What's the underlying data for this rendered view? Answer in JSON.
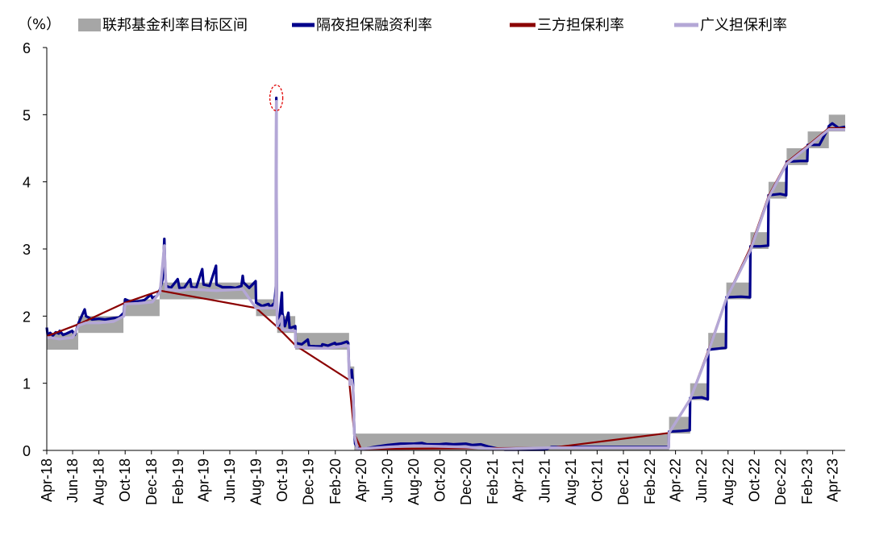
{
  "chart_data": {
    "type": "line",
    "unit": "（%）",
    "ylim": [
      0,
      6
    ],
    "y_ticks": [
      "0",
      "1",
      "2",
      "3",
      "4",
      "5",
      "6"
    ],
    "x_ticks": [
      "Apr-18",
      "Jun-18",
      "Aug-18",
      "Oct-18",
      "Dec-18",
      "Feb-19",
      "Apr-19",
      "Jun-19",
      "Aug-19",
      "Oct-19",
      "Dec-19",
      "Feb-20",
      "Apr-20",
      "Jun-20",
      "Aug-20",
      "Oct-20",
      "Dec-20",
      "Feb-21",
      "Apr-21",
      "Jun-21",
      "Aug-21",
      "Oct-21",
      "Dec-21",
      "Feb-22",
      "Apr-22",
      "Jun-22",
      "Aug-22",
      "Oct-22",
      "Dec-22",
      "Feb-23",
      "Apr-23"
    ],
    "xlim": [
      "2018-04-02",
      "2023-04-30"
    ],
    "legend_position": "top",
    "grid": false,
    "series": [
      {
        "name": "联邦基金利率目标区间",
        "kind": "band",
        "color": "#a6a6a6",
        "steps": [
          {
            "from": "2018-04-02",
            "to": "2018-06-14",
            "low": 1.5,
            "high": 1.75
          },
          {
            "from": "2018-06-14",
            "to": "2018-09-27",
            "low": 1.75,
            "high": 2.0
          },
          {
            "from": "2018-09-27",
            "to": "2018-12-20",
            "low": 2.0,
            "high": 2.25
          },
          {
            "from": "2018-12-20",
            "to": "2019-08-01",
            "low": 2.25,
            "high": 2.5
          },
          {
            "from": "2019-08-01",
            "to": "2019-09-19",
            "low": 2.0,
            "high": 2.25
          },
          {
            "from": "2019-09-19",
            "to": "2019-10-31",
            "low": 1.75,
            "high": 2.0
          },
          {
            "from": "2019-10-31",
            "to": "2020-03-04",
            "low": 1.5,
            "high": 1.75
          },
          {
            "from": "2020-03-04",
            "to": "2020-03-16",
            "low": 1.0,
            "high": 1.25
          },
          {
            "from": "2020-03-16",
            "to": "2022-03-17",
            "low": 0.0,
            "high": 0.25
          },
          {
            "from": "2022-03-17",
            "to": "2022-05-05",
            "low": 0.25,
            "high": 0.5
          },
          {
            "from": "2022-05-05",
            "to": "2022-06-16",
            "low": 0.75,
            "high": 1.0
          },
          {
            "from": "2022-06-16",
            "to": "2022-07-28",
            "low": 1.5,
            "high": 1.75
          },
          {
            "from": "2022-07-28",
            "to": "2022-09-22",
            "low": 2.25,
            "high": 2.5
          },
          {
            "from": "2022-09-22",
            "to": "2022-11-03",
            "low": 3.0,
            "high": 3.25
          },
          {
            "from": "2022-11-03",
            "to": "2022-12-15",
            "low": 3.75,
            "high": 4.0
          },
          {
            "from": "2022-12-15",
            "to": "2023-02-02",
            "low": 4.25,
            "high": 4.5
          },
          {
            "from": "2023-02-02",
            "to": "2023-03-23",
            "low": 4.5,
            "high": 4.75
          },
          {
            "from": "2023-03-23",
            "to": "2023-04-30",
            "low": 4.75,
            "high": 5.0
          }
        ]
      },
      {
        "name": "隔夜担保融资利率",
        "kind": "line",
        "color": "#00008b",
        "points": [
          [
            "2018-04-02",
            1.83
          ],
          [
            "2018-04-04",
            1.72
          ],
          [
            "2018-04-10",
            1.75
          ],
          [
            "2018-04-16",
            1.71
          ],
          [
            "2018-04-23",
            1.76
          ],
          [
            "2018-04-30",
            1.74
          ],
          [
            "2018-05-02",
            1.78
          ],
          [
            "2018-05-10",
            1.72
          ],
          [
            "2018-05-18",
            1.74
          ],
          [
            "2018-05-31",
            1.78
          ],
          [
            "2018-06-06",
            1.72
          ],
          [
            "2018-06-15",
            1.9
          ],
          [
            "2018-06-29",
            2.1
          ],
          [
            "2018-07-02",
            2.0
          ],
          [
            "2018-07-16",
            1.95
          ],
          [
            "2018-08-01",
            1.96
          ],
          [
            "2018-08-15",
            1.95
          ],
          [
            "2018-09-04",
            1.97
          ],
          [
            "2018-09-17",
            1.98
          ],
          [
            "2018-09-28",
            2.05
          ],
          [
            "2018-10-01",
            2.25
          ],
          [
            "2018-10-15",
            2.21
          ],
          [
            "2018-11-01",
            2.22
          ],
          [
            "2018-11-15",
            2.24
          ],
          [
            "2018-11-30",
            2.32
          ],
          [
            "2018-12-03",
            2.27
          ],
          [
            "2018-12-14",
            2.3
          ],
          [
            "2018-12-21",
            2.4
          ],
          [
            "2018-12-27",
            2.55
          ],
          [
            "2018-12-31",
            3.15
          ],
          [
            "2019-01-02",
            2.65
          ],
          [
            "2019-01-04",
            2.45
          ],
          [
            "2019-01-15",
            2.42
          ],
          [
            "2019-01-31",
            2.55
          ],
          [
            "2019-02-04",
            2.42
          ],
          [
            "2019-02-15",
            2.42
          ],
          [
            "2019-03-01",
            2.55
          ],
          [
            "2019-03-04",
            2.43
          ],
          [
            "2019-03-15",
            2.42
          ],
          [
            "2019-03-29",
            2.7
          ],
          [
            "2019-04-01",
            2.47
          ],
          [
            "2019-04-15",
            2.45
          ],
          [
            "2019-04-30",
            2.75
          ],
          [
            "2019-05-01",
            2.47
          ],
          [
            "2019-05-15",
            2.43
          ],
          [
            "2019-06-03",
            2.43
          ],
          [
            "2019-06-14",
            2.42
          ],
          [
            "2019-06-28",
            2.45
          ],
          [
            "2019-07-01",
            2.6
          ],
          [
            "2019-07-03",
            2.5
          ],
          [
            "2019-07-16",
            2.42
          ],
          [
            "2019-07-31",
            2.52
          ],
          [
            "2019-08-01",
            2.2
          ],
          [
            "2019-08-15",
            2.15
          ],
          [
            "2019-08-30",
            2.18
          ],
          [
            "2019-09-03",
            2.13
          ],
          [
            "2019-09-13",
            2.2
          ],
          [
            "2019-09-16",
            2.45
          ],
          [
            "2019-09-17",
            5.25
          ],
          [
            "2019-09-18",
            2.55
          ],
          [
            "2019-09-19",
            1.95
          ],
          [
            "2019-09-23",
            1.86
          ],
          [
            "2019-09-30",
            2.35
          ],
          [
            "2019-10-01",
            2.05
          ],
          [
            "2019-10-07",
            1.85
          ],
          [
            "2019-10-15",
            2.05
          ],
          [
            "2019-10-18",
            1.82
          ],
          [
            "2019-10-31",
            1.85
          ],
          [
            "2019-11-01",
            1.6
          ],
          [
            "2019-11-15",
            1.58
          ],
          [
            "2019-11-29",
            1.65
          ],
          [
            "2019-12-02",
            1.56
          ],
          [
            "2019-12-16",
            1.55
          ],
          [
            "2019-12-31",
            1.55
          ],
          [
            "2020-01-02",
            1.58
          ],
          [
            "2020-01-15",
            1.56
          ],
          [
            "2020-01-31",
            1.6
          ],
          [
            "2020-02-03",
            1.58
          ],
          [
            "2020-02-14",
            1.59
          ],
          [
            "2020-02-28",
            1.62
          ],
          [
            "2020-03-02",
            1.6
          ],
          [
            "2020-03-04",
            1.2
          ],
          [
            "2020-03-06",
            1.05
          ],
          [
            "2020-03-10",
            1.2
          ],
          [
            "2020-03-13",
            1.0
          ],
          [
            "2020-03-16",
            0.3
          ],
          [
            "2020-03-18",
            0.1
          ],
          [
            "2020-03-23",
            0.04
          ],
          [
            "2020-04-01",
            0.02
          ],
          [
            "2020-04-15",
            0.03
          ],
          [
            "2020-05-01",
            0.05
          ],
          [
            "2020-06-01",
            0.08
          ],
          [
            "2020-07-01",
            0.1
          ],
          [
            "2020-08-01",
            0.1
          ],
          [
            "2020-08-20",
            0.11
          ],
          [
            "2020-09-01",
            0.09
          ],
          [
            "2020-09-30",
            0.09
          ],
          [
            "2020-10-15",
            0.1
          ],
          [
            "2020-11-01",
            0.09
          ],
          [
            "2020-11-30",
            0.1
          ],
          [
            "2020-12-15",
            0.08
          ],
          [
            "2021-01-04",
            0.09
          ],
          [
            "2021-01-20",
            0.06
          ],
          [
            "2021-02-10",
            0.03
          ],
          [
            "2021-03-01",
            0.01
          ],
          [
            "2021-04-01",
            0.01
          ],
          [
            "2021-06-01",
            0.01
          ],
          [
            "2021-06-17",
            0.05
          ],
          [
            "2021-07-01",
            0.05
          ],
          [
            "2021-10-01",
            0.05
          ],
          [
            "2022-01-03",
            0.05
          ],
          [
            "2022-03-16",
            0.05
          ],
          [
            "2022-03-17",
            0.28
          ],
          [
            "2022-04-15",
            0.29
          ],
          [
            "2022-05-04",
            0.3
          ],
          [
            "2022-05-05",
            0.78
          ],
          [
            "2022-06-01",
            0.79
          ],
          [
            "2022-06-15",
            0.76
          ],
          [
            "2022-06-16",
            1.5
          ],
          [
            "2022-07-15",
            1.52
          ],
          [
            "2022-07-27",
            1.53
          ],
          [
            "2022-07-28",
            2.28
          ],
          [
            "2022-08-31",
            2.29
          ],
          [
            "2022-09-21",
            2.28
          ],
          [
            "2022-09-22",
            3.04
          ],
          [
            "2022-10-15",
            3.04
          ],
          [
            "2022-11-02",
            3.05
          ],
          [
            "2022-11-03",
            3.8
          ],
          [
            "2022-11-30",
            3.82
          ],
          [
            "2022-12-14",
            3.8
          ],
          [
            "2022-12-15",
            4.3
          ],
          [
            "2023-01-15",
            4.31
          ],
          [
            "2023-02-01",
            4.31
          ],
          [
            "2023-02-02",
            4.55
          ],
          [
            "2023-03-01",
            4.55
          ],
          [
            "2023-03-22",
            4.8
          ],
          [
            "2023-03-23",
            4.83
          ],
          [
            "2023-03-31",
            4.87
          ],
          [
            "2023-04-15",
            4.8
          ],
          [
            "2023-04-30",
            4.82
          ]
        ]
      },
      {
        "name": "三方担保利率",
        "kind": "line",
        "color": "#8b0000",
        "points": [
          [
            "2018-04-02",
            1.7
          ],
          [
            "2018-06-15",
            1.88
          ],
          [
            "2018-10-01",
            2.2
          ],
          [
            "2018-12-21",
            2.38
          ],
          [
            "2019-08-01",
            2.12
          ],
          [
            "2019-09-19",
            1.84
          ],
          [
            "2019-11-01",
            1.56
          ],
          [
            "2020-03-04",
            1.05
          ],
          [
            "2020-03-16",
            0.25
          ],
          [
            "2020-04-01",
            0.02
          ],
          [
            "2021-06-17",
            0.04
          ],
          [
            "2022-03-17",
            0.26
          ],
          [
            "2022-05-05",
            0.77
          ],
          [
            "2022-06-16",
            1.49
          ],
          [
            "2022-07-28",
            2.27
          ],
          [
            "2022-09-22",
            3.02
          ],
          [
            "2022-11-03",
            3.79
          ],
          [
            "2022-12-15",
            4.29
          ],
          [
            "2023-02-02",
            4.54
          ],
          [
            "2023-03-23",
            4.8
          ],
          [
            "2023-04-30",
            4.8
          ]
        ]
      },
      {
        "name": "广义担保利率",
        "kind": "line",
        "color": "#b4a7d6",
        "points": [
          [
            "2018-04-02",
            1.68
          ],
          [
            "2018-04-10",
            1.68
          ],
          [
            "2018-05-01",
            1.66
          ],
          [
            "2018-06-01",
            1.68
          ],
          [
            "2018-06-15",
            1.86
          ],
          [
            "2018-07-02",
            1.9
          ],
          [
            "2018-08-01",
            1.9
          ],
          [
            "2018-09-04",
            1.92
          ],
          [
            "2018-09-28",
            2.0
          ],
          [
            "2018-10-01",
            2.18
          ],
          [
            "2018-11-01",
            2.19
          ],
          [
            "2018-12-03",
            2.21
          ],
          [
            "2018-12-21",
            2.36
          ],
          [
            "2018-12-31",
            3.05
          ],
          [
            "2019-01-04",
            2.4
          ],
          [
            "2019-02-01",
            2.38
          ],
          [
            "2019-03-01",
            2.4
          ],
          [
            "2019-04-01",
            2.39
          ],
          [
            "2019-05-01",
            2.38
          ],
          [
            "2019-06-03",
            2.39
          ],
          [
            "2019-07-01",
            2.4
          ],
          [
            "2019-08-01",
            2.12
          ],
          [
            "2019-09-13",
            2.12
          ],
          [
            "2019-09-16",
            2.3
          ],
          [
            "2019-09-17",
            5.2
          ],
          [
            "2019-09-18",
            2.4
          ],
          [
            "2019-09-19",
            1.85
          ],
          [
            "2019-09-30",
            2.0
          ],
          [
            "2019-10-01",
            1.8
          ],
          [
            "2019-10-31",
            1.78
          ],
          [
            "2019-11-01",
            1.54
          ],
          [
            "2019-12-31",
            1.52
          ],
          [
            "2020-01-15",
            1.52
          ],
          [
            "2020-02-14",
            1.55
          ],
          [
            "2020-03-02",
            1.56
          ],
          [
            "2020-03-04",
            1.15
          ],
          [
            "2020-03-06",
            0.98
          ],
          [
            "2020-03-10",
            1.05
          ],
          [
            "2020-03-13",
            0.95
          ],
          [
            "2020-03-16",
            0.25
          ],
          [
            "2020-03-23",
            0.02
          ],
          [
            "2020-06-01",
            0.05
          ],
          [
            "2020-08-01",
            0.07
          ],
          [
            "2020-10-01",
            0.06
          ],
          [
            "2020-12-01",
            0.05
          ],
          [
            "2021-02-10",
            0.02
          ],
          [
            "2021-06-17",
            0.04
          ],
          [
            "2022-03-16",
            0.04
          ],
          [
            "2022-03-17",
            0.26
          ],
          [
            "2022-05-05",
            0.76
          ],
          [
            "2022-06-16",
            1.46
          ],
          [
            "2022-07-28",
            2.26
          ],
          [
            "2022-09-22",
            2.98
          ],
          [
            "2022-11-03",
            3.76
          ],
          [
            "2022-12-15",
            4.27
          ],
          [
            "2023-02-02",
            4.52
          ],
          [
            "2023-03-23",
            4.78
          ],
          [
            "2023-04-30",
            4.78
          ]
        ]
      }
    ],
    "highlight": {
      "date": "2019-09-17",
      "value": 5.25
    }
  }
}
